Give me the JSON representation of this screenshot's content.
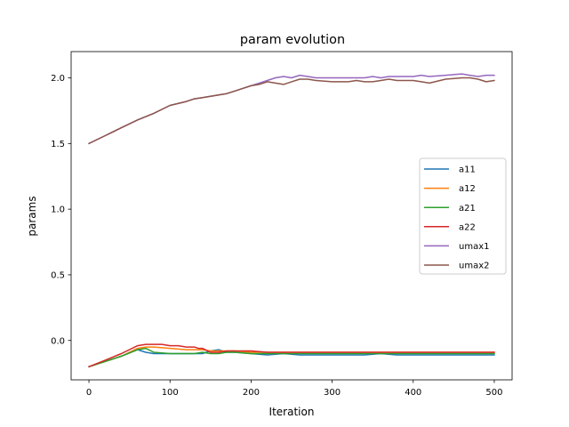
{
  "chart_data": {
    "type": "line",
    "title": "param evolution",
    "xlabel": "Iteration",
    "ylabel": "params",
    "xlim": [
      -22,
      522
    ],
    "ylim": [
      -0.3,
      2.2
    ],
    "xticks": [
      0,
      100,
      200,
      300,
      400,
      500
    ],
    "xtick_labels": [
      "0",
      "100",
      "200",
      "300",
      "400",
      "500"
    ],
    "yticks": [
      0.0,
      0.5,
      1.0,
      1.5,
      2.0
    ],
    "ytick_labels": [
      "0.0",
      "0.5",
      "1.0",
      "1.5",
      "2.0"
    ],
    "grid": false,
    "legend_position": "center-right",
    "series": [
      {
        "name": "a11",
        "color": "#1f77b4",
        "x": [
          0,
          20,
          40,
          60,
          70,
          80,
          100,
          120,
          140,
          150,
          160,
          170,
          180,
          200,
          220,
          240,
          260,
          280,
          300,
          320,
          340,
          360,
          380,
          400,
          420,
          440,
          460,
          480,
          500
        ],
        "y": [
          -0.2,
          -0.16,
          -0.12,
          -0.07,
          -0.09,
          -0.1,
          -0.1,
          -0.1,
          -0.1,
          -0.08,
          -0.07,
          -0.09,
          -0.09,
          -0.1,
          -0.11,
          -0.1,
          -0.11,
          -0.11,
          -0.11,
          -0.11,
          -0.11,
          -0.1,
          -0.11,
          -0.11,
          -0.11,
          -0.11,
          -0.11,
          -0.11,
          -0.11
        ]
      },
      {
        "name": "a12",
        "color": "#ff7f0e",
        "x": [
          0,
          20,
          40,
          60,
          70,
          80,
          100,
          120,
          140,
          150,
          160,
          170,
          180,
          200,
          220,
          240,
          260,
          280,
          300,
          320,
          340,
          360,
          380,
          400,
          420,
          440,
          460,
          480,
          500
        ],
        "y": [
          -0.2,
          -0.16,
          -0.12,
          -0.06,
          -0.05,
          -0.05,
          -0.06,
          -0.07,
          -0.07,
          -0.08,
          -0.08,
          -0.08,
          -0.08,
          -0.09,
          -0.09,
          -0.09,
          -0.09,
          -0.09,
          -0.09,
          -0.09,
          -0.09,
          -0.09,
          -0.09,
          -0.09,
          -0.09,
          -0.09,
          -0.09,
          -0.09,
          -0.09
        ]
      },
      {
        "name": "a21",
        "color": "#2ca02c",
        "x": [
          0,
          20,
          40,
          60,
          70,
          80,
          100,
          120,
          130,
          140,
          150,
          160,
          170,
          180,
          200,
          220,
          240,
          260,
          280,
          300,
          320,
          340,
          360,
          380,
          400,
          420,
          440,
          460,
          480,
          500
        ],
        "y": [
          -0.2,
          -0.16,
          -0.12,
          -0.07,
          -0.06,
          -0.09,
          -0.1,
          -0.1,
          -0.1,
          -0.09,
          -0.1,
          -0.1,
          -0.09,
          -0.09,
          -0.1,
          -0.1,
          -0.1,
          -0.1,
          -0.1,
          -0.1,
          -0.1,
          -0.1,
          -0.1,
          -0.1,
          -0.1,
          -0.1,
          -0.1,
          -0.1,
          -0.1,
          -0.1
        ]
      },
      {
        "name": "a22",
        "color": "#d62728",
        "x": [
          0,
          20,
          40,
          60,
          70,
          80,
          90,
          100,
          110,
          120,
          130,
          135,
          140,
          150,
          160,
          170,
          180,
          190,
          200,
          220,
          240,
          260,
          280,
          300,
          320,
          340,
          360,
          380,
          400,
          420,
          440,
          460,
          480,
          500
        ],
        "y": [
          -0.2,
          -0.15,
          -0.1,
          -0.04,
          -0.03,
          -0.03,
          -0.03,
          -0.04,
          -0.04,
          -0.05,
          -0.05,
          -0.06,
          -0.06,
          -0.09,
          -0.09,
          -0.08,
          -0.08,
          -0.08,
          -0.08,
          -0.09,
          -0.09,
          -0.09,
          -0.09,
          -0.09,
          -0.09,
          -0.09,
          -0.09,
          -0.09,
          -0.09,
          -0.09,
          -0.09,
          -0.09,
          -0.09,
          -0.09
        ]
      },
      {
        "name": "umax1",
        "color": "#9467bd",
        "x": [
          0,
          20,
          40,
          60,
          80,
          100,
          120,
          130,
          140,
          150,
          160,
          170,
          180,
          190,
          200,
          210,
          220,
          230,
          240,
          250,
          260,
          270,
          280,
          300,
          320,
          340,
          350,
          360,
          370,
          380,
          400,
          410,
          420,
          440,
          460,
          470,
          480,
          490,
          500
        ],
        "y": [
          1.5,
          1.56,
          1.62,
          1.68,
          1.73,
          1.79,
          1.82,
          1.84,
          1.85,
          1.86,
          1.87,
          1.88,
          1.9,
          1.92,
          1.94,
          1.96,
          1.98,
          2.0,
          2.01,
          2.0,
          2.02,
          2.01,
          2.0,
          2.0,
          2.0,
          2.0,
          2.01,
          2.0,
          2.01,
          2.01,
          2.01,
          2.02,
          2.01,
          2.02,
          2.03,
          2.02,
          2.01,
          2.02,
          2.02
        ]
      },
      {
        "name": "umax2",
        "color": "#8c564b",
        "x": [
          0,
          20,
          40,
          60,
          80,
          100,
          120,
          130,
          140,
          150,
          160,
          170,
          180,
          190,
          200,
          210,
          220,
          230,
          240,
          250,
          260,
          270,
          280,
          300,
          320,
          330,
          340,
          350,
          360,
          370,
          380,
          400,
          410,
          420,
          440,
          460,
          470,
          480,
          490,
          500
        ],
        "y": [
          1.5,
          1.56,
          1.62,
          1.68,
          1.73,
          1.79,
          1.82,
          1.84,
          1.85,
          1.86,
          1.87,
          1.88,
          1.9,
          1.92,
          1.94,
          1.95,
          1.97,
          1.96,
          1.95,
          1.97,
          1.99,
          1.99,
          1.98,
          1.97,
          1.97,
          1.98,
          1.97,
          1.97,
          1.98,
          1.99,
          1.98,
          1.98,
          1.97,
          1.96,
          1.99,
          2.0,
          2.0,
          1.99,
          1.97,
          1.98
        ]
      }
    ]
  }
}
